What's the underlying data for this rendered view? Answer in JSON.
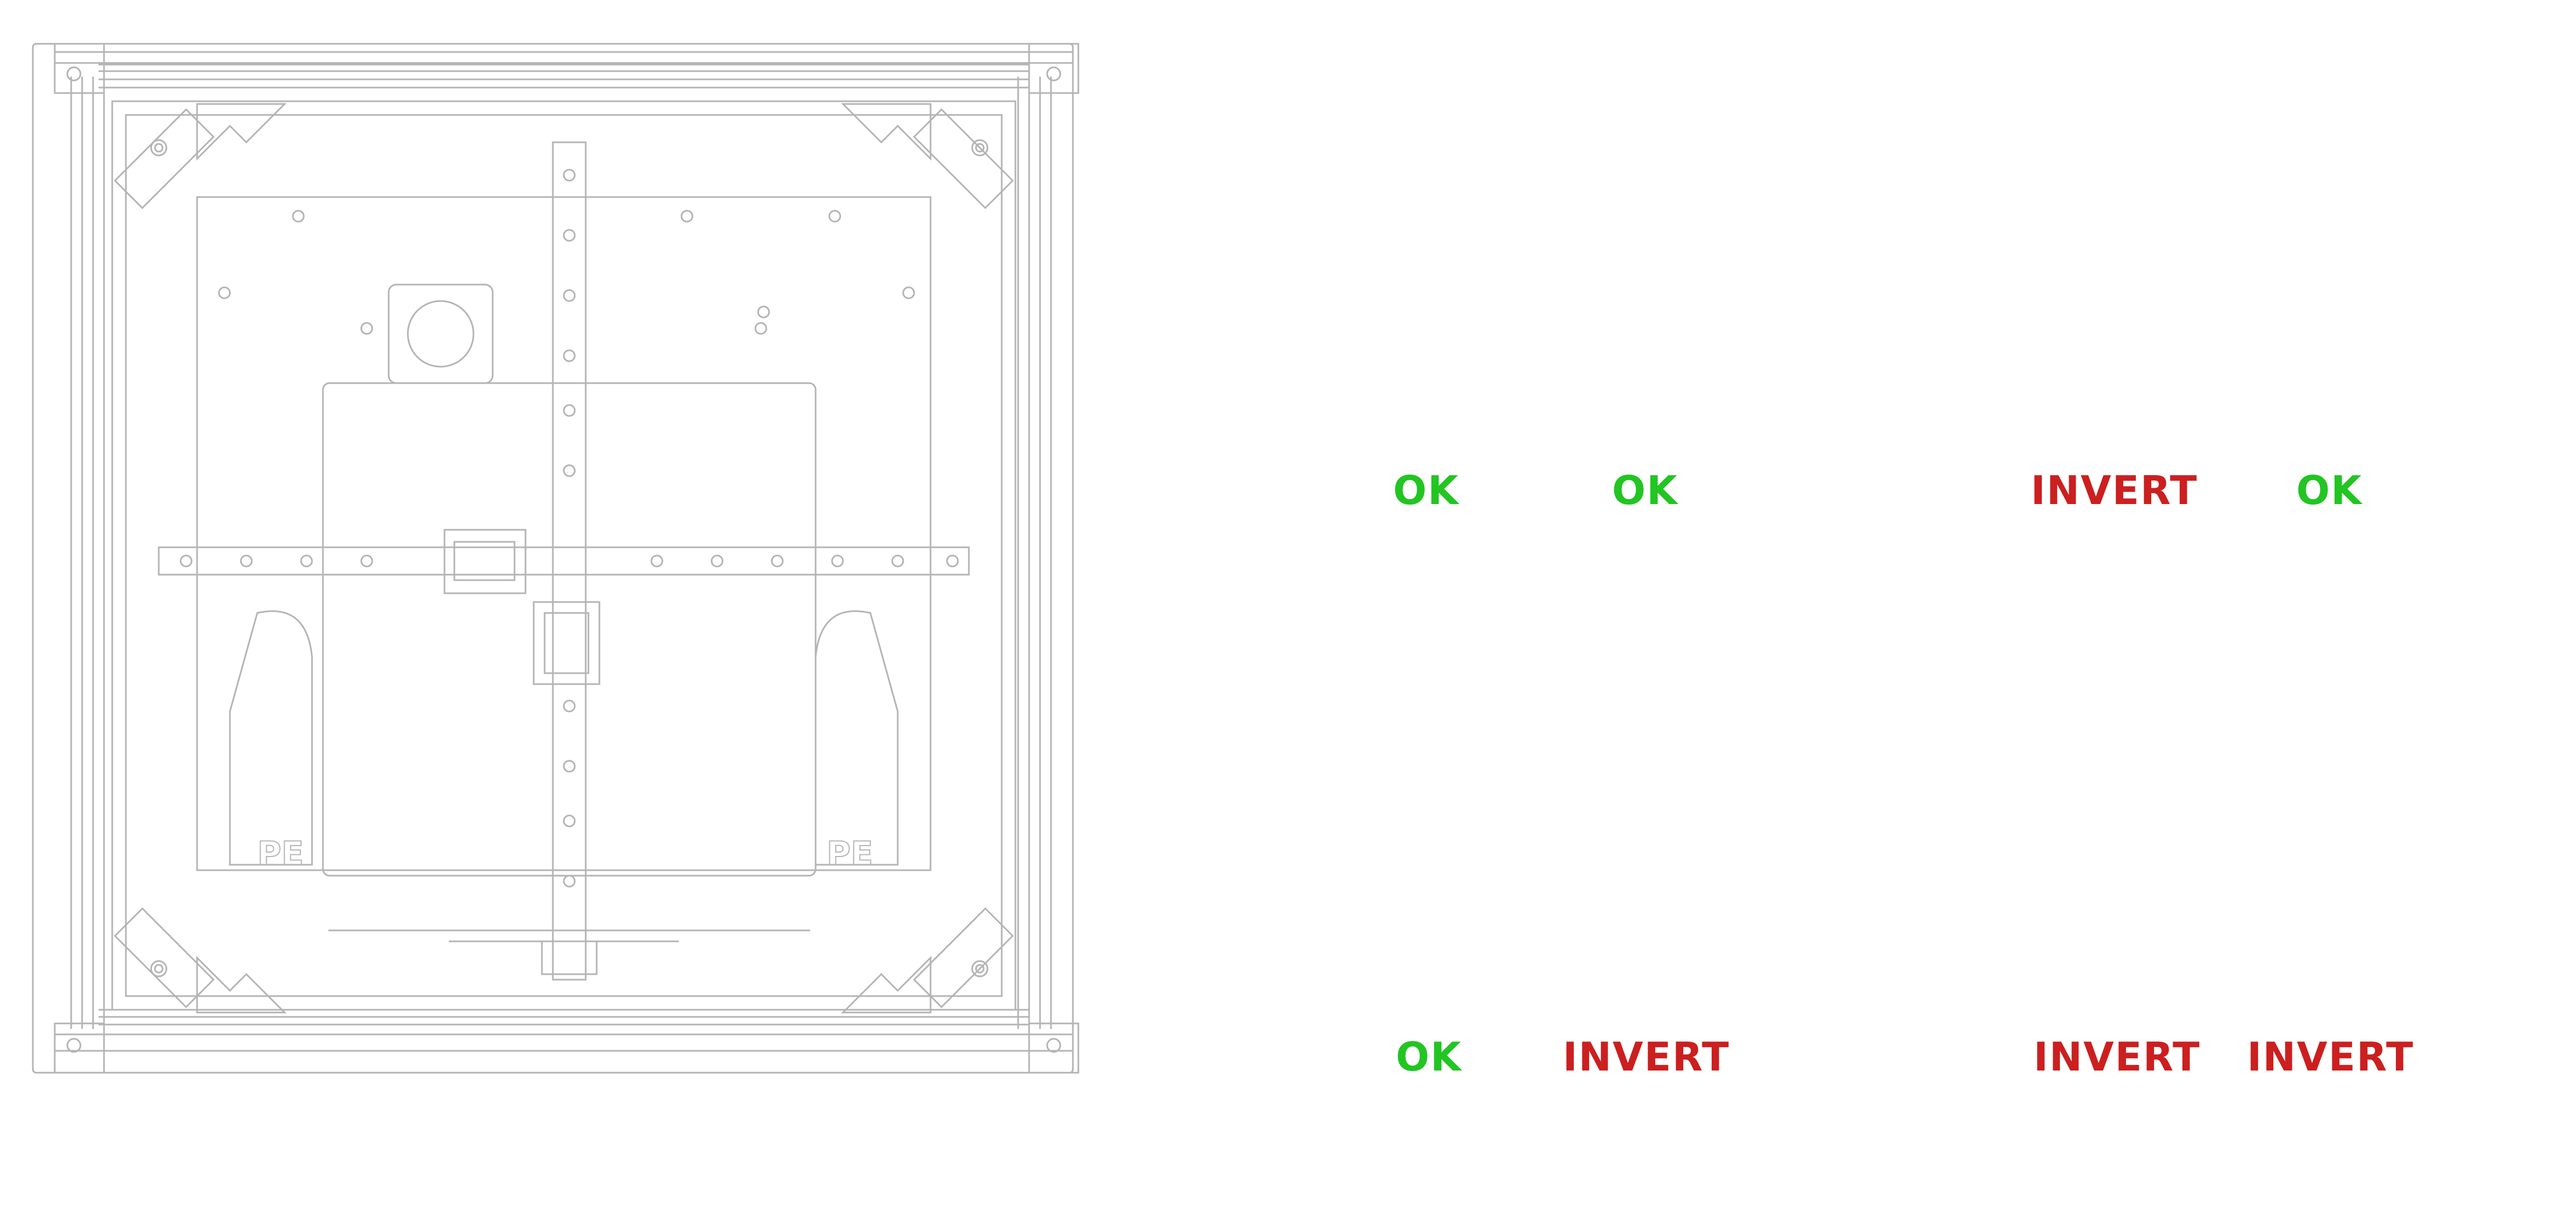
{
  "labels": {
    "row1": [
      "OK",
      "OK",
      "INVERT",
      "OK"
    ],
    "row2": [
      "OK",
      "INVERT",
      "INVERT",
      "INVERT"
    ]
  },
  "colors": {
    "ok": "#22c522",
    "invert": "#cc1f1f",
    "line": "#b4b4b4",
    "background": "#ffffff"
  },
  "illustration": {
    "name": "printer-frame-top-view",
    "badge_logo": "PE"
  }
}
